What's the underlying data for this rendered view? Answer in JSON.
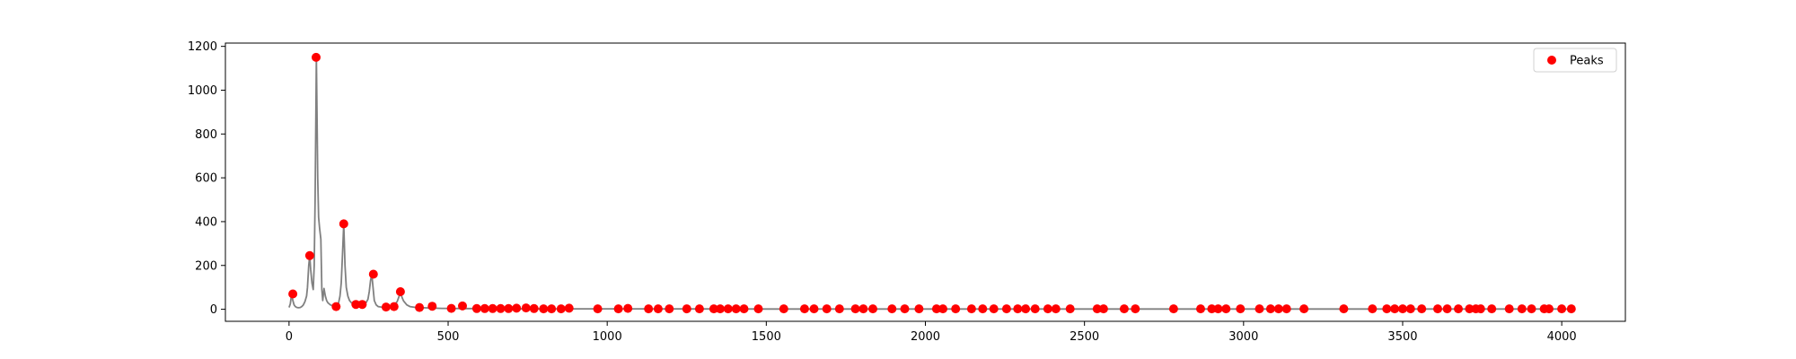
{
  "chart_data": {
    "type": "line",
    "title": "",
    "xlabel": "",
    "ylabel": "",
    "xlim": [
      -200,
      4200
    ],
    "ylim": [
      -55,
      1215
    ],
    "xticks": [
      0,
      500,
      1000,
      1500,
      2000,
      2500,
      3000,
      3500,
      4000
    ],
    "yticks": [
      0,
      200,
      400,
      600,
      800,
      1000,
      1200
    ],
    "grid": false,
    "legend_position": "top-right",
    "colors": {
      "signal": "#808080",
      "peaks": "#ff0000",
      "axes": "#000000"
    },
    "series": [
      {
        "kind": "line",
        "x": [
          0,
          4,
          8,
          12,
          16,
          20,
          25,
          30,
          35,
          40,
          45,
          50,
          55,
          58,
          62,
          65,
          68,
          72,
          76,
          79,
          82,
          85,
          86,
          88,
          90,
          93,
          96,
          100,
          103,
          106,
          110,
          114,
          118,
          122,
          126,
          130,
          134,
          140,
          145,
          150,
          155,
          160,
          164,
          168,
          172,
          176,
          180,
          185,
          190,
          196,
          200,
          210,
          220,
          230,
          240,
          248,
          252,
          256,
          260,
          264,
          268,
          274,
          280,
          290,
          300,
          310,
          320,
          330,
          340,
          346,
          350,
          355,
          360,
          370,
          380,
          390,
          400,
          420,
          440,
          460,
          480,
          500,
          550,
          600,
          700,
          800,
          1000,
          1500,
          2000,
          2500,
          3000,
          3500,
          4020
        ],
        "y": [
          8,
          25,
          70,
          40,
          20,
          12,
          8,
          7,
          8,
          12,
          20,
          35,
          60,
          100,
          200,
          245,
          180,
          120,
          90,
          200,
          500,
          1000,
          1150,
          900,
          600,
          420,
          370,
          320,
          90,
          40,
          95,
          60,
          40,
          30,
          25,
          20,
          18,
          14,
          15,
          18,
          25,
          60,
          120,
          250,
          390,
          200,
          100,
          60,
          40,
          30,
          25,
          20,
          22,
          20,
          25,
          45,
          80,
          130,
          160,
          100,
          40,
          20,
          12,
          10,
          9,
          10,
          12,
          18,
          35,
          60,
          80,
          55,
          38,
          20,
          12,
          10,
          8,
          7,
          6,
          5,
          4,
          4,
          3,
          3,
          2,
          2,
          2,
          1,
          1,
          1,
          1,
          1,
          1
        ]
      },
      {
        "kind": "scatter",
        "name": "Peaks",
        "x": [
          12,
          65,
          85,
          148,
          172,
          210,
          230,
          265,
          305,
          330,
          350,
          410,
          450,
          510,
          545,
          590,
          615,
          640,
          665,
          690,
          715,
          745,
          770,
          800,
          825,
          855,
          880,
          970,
          1035,
          1065,
          1130,
          1160,
          1195,
          1250,
          1290,
          1335,
          1355,
          1380,
          1405,
          1430,
          1475,
          1555,
          1620,
          1650,
          1690,
          1730,
          1780,
          1805,
          1835,
          1895,
          1935,
          1980,
          2035,
          2055,
          2095,
          2145,
          2180,
          2215,
          2255,
          2290,
          2315,
          2345,
          2385,
          2410,
          2455,
          2540,
          2560,
          2625,
          2660,
          2780,
          2865,
          2900,
          2920,
          2945,
          2990,
          3050,
          3085,
          3110,
          3135,
          3190,
          3315,
          3405,
          3450,
          3475,
          3500,
          3525,
          3560,
          3610,
          3640,
          3675,
          3710,
          3730,
          3745,
          3780,
          3835,
          3875,
          3905,
          3945,
          3960,
          4000,
          4030
        ],
        "y": [
          70,
          245,
          1150,
          12,
          390,
          22,
          22,
          160,
          10,
          12,
          80,
          8,
          14,
          4,
          15,
          3,
          3,
          3,
          3,
          3,
          5,
          6,
          3,
          2,
          2,
          2,
          5,
          2,
          2,
          4,
          2,
          2,
          2,
          2,
          2,
          2,
          2,
          2,
          2,
          2,
          2,
          2,
          2,
          2,
          2,
          2,
          2,
          2,
          2,
          2,
          2,
          2,
          2,
          2,
          2,
          2,
          2,
          2,
          2,
          2,
          2,
          2,
          2,
          2,
          2,
          2,
          2,
          2,
          2,
          2,
          2,
          2,
          2,
          2,
          2,
          2,
          2,
          2,
          2,
          2,
          2,
          2,
          2,
          2,
          2,
          2,
          2,
          2,
          2,
          2,
          2,
          2,
          2,
          2,
          2,
          2,
          2,
          2,
          2,
          2,
          2
        ]
      }
    ]
  }
}
